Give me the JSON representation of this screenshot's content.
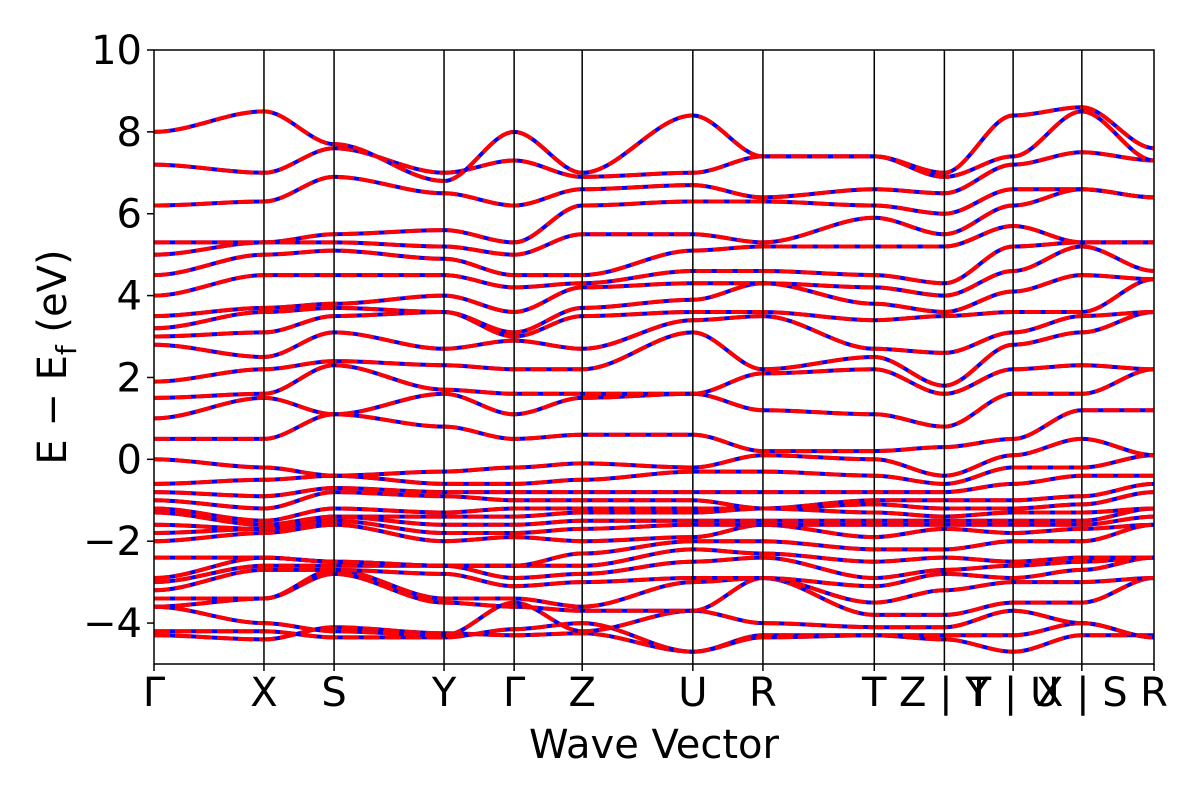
{
  "chart_data": {
    "type": "line",
    "title": "",
    "xlabel": "Wave Vector",
    "ylabel": "E − E_f (eV)",
    "ylabel_main": "E − E",
    "ylabel_sub": "f",
    "ylabel_unit": " (eV)",
    "ylim": [
      -5,
      10
    ],
    "yticks": [
      {
        "value": 10,
        "label": "10"
      },
      {
        "value": 8,
        "label": "8"
      },
      {
        "value": 6,
        "label": "6"
      },
      {
        "value": 4,
        "label": "4"
      },
      {
        "value": 2,
        "label": "2"
      },
      {
        "value": 0,
        "label": "0"
      },
      {
        "value": -2,
        "label": "−2"
      },
      {
        "value": -4,
        "label": "−4"
      }
    ],
    "grid": false,
    "legend": "none",
    "xlim": [
      0,
      14.55
    ],
    "kpoints": [
      {
        "label": "Γ",
        "x": 0
      },
      {
        "label": "X",
        "x": 1.6
      },
      {
        "label": "S",
        "x": 2.62
      },
      {
        "label": "Y",
        "x": 4.22
      },
      {
        "label": "Γ",
        "x": 5.24
      },
      {
        "label": "Z",
        "x": 6.23
      },
      {
        "label": "U",
        "x": 7.84
      },
      {
        "label": "R",
        "x": 8.86
      },
      {
        "label": "T",
        "x": 10.48
      },
      {
        "label": "Z | Y",
        "x": 11.5
      },
      {
        "label": "T | U",
        "x": 12.5
      },
      {
        "label": "X | S",
        "x": 13.5
      },
      {
        "label": "R",
        "x": 14.55
      }
    ],
    "series_styles": [
      {
        "color": "#0000ff",
        "style": "solid"
      },
      {
        "color": "#ff0000",
        "style": "dashed"
      }
    ],
    "bands": [
      [
        -4.3,
        -4.4,
        -4.1,
        -4.25,
        -4.3,
        -4.25,
        -4.7,
        -4.3,
        -4.3,
        -4.4,
        -4.7,
        -4.3,
        -4.3
      ],
      [
        -4.2,
        -4.2,
        -4.35,
        -4.35,
        -4.15,
        -4.0,
        -4.7,
        -4.35,
        -4.3,
        -4.3,
        -4.3,
        -4.0,
        -4.35
      ],
      [
        -3.6,
        -4.0,
        -4.2,
        -4.3,
        -3.5,
        -4.2,
        -3.7,
        -4.0,
        -4.1,
        -4.1,
        -3.7,
        -4.0,
        -4.35
      ],
      [
        -3.6,
        -3.4,
        -2.8,
        -3.5,
        -3.6,
        -3.7,
        -3.7,
        -2.9,
        -3.8,
        -3.8,
        -3.5,
        -3.5,
        -2.9
      ],
      [
        -3.4,
        -3.4,
        -2.7,
        -3.4,
        -3.4,
        -3.6,
        -3.0,
        -2.9,
        -3.5,
        -3.2,
        -3.0,
        -3.0,
        -2.9
      ],
      [
        -3.2,
        -2.7,
        -2.7,
        -2.8,
        -3.1,
        -3.0,
        -2.9,
        -2.9,
        -3.1,
        -2.8,
        -2.9,
        -2.7,
        -2.4
      ],
      [
        -3.0,
        -2.6,
        -2.6,
        -2.6,
        -2.9,
        -2.8,
        -2.5,
        -2.4,
        -2.9,
        -2.7,
        -2.6,
        -2.5,
        -2.4
      ],
      [
        -2.9,
        -2.4,
        -2.5,
        -2.6,
        -2.6,
        -2.6,
        -2.2,
        -2.3,
        -2.5,
        -2.4,
        -2.5,
        -2.4,
        -2.4
      ],
      [
        -2.4,
        -2.4,
        -2.5,
        -2.6,
        -2.6,
        -2.3,
        -2.0,
        -2.0,
        -2.2,
        -2.2,
        -2.0,
        -2.0,
        -1.6
      ],
      [
        -2.0,
        -1.8,
        -1.6,
        -2.0,
        -1.9,
        -2.0,
        -1.9,
        -1.6,
        -1.9,
        -1.7,
        -1.8,
        -1.7,
        -1.6
      ],
      [
        -1.8,
        -1.7,
        -1.5,
        -1.8,
        -1.8,
        -1.7,
        -1.6,
        -1.6,
        -1.6,
        -1.6,
        -1.6,
        -1.6,
        -1.4
      ],
      [
        -1.6,
        -1.7,
        -1.4,
        -1.6,
        -1.6,
        -1.5,
        -1.5,
        -1.5,
        -1.5,
        -1.5,
        -1.5,
        -1.5,
        -1.2
      ],
      [
        -1.3,
        -1.6,
        -1.4,
        -1.4,
        -1.4,
        -1.3,
        -1.3,
        -1.2,
        -1.3,
        -1.4,
        -1.3,
        -1.3,
        -1.2
      ],
      [
        -1.2,
        -1.5,
        -1.2,
        -1.3,
        -1.2,
        -1.2,
        -1.2,
        -1.2,
        -1.1,
        -1.2,
        -1.2,
        -1.1,
        -0.8
      ],
      [
        -1.0,
        -1.2,
        -0.8,
        -0.9,
        -1.0,
        -1.0,
        -1.0,
        -1.2,
        -1.0,
        -1.0,
        -1.0,
        -0.9,
        -0.6
      ],
      [
        -0.8,
        -0.9,
        -0.7,
        -0.8,
        -0.8,
        -0.8,
        -0.8,
        -0.8,
        -0.8,
        -0.8,
        -0.6,
        -0.4,
        -0.4
      ],
      [
        -0.6,
        -0.5,
        -0.4,
        -0.6,
        -0.6,
        -0.5,
        -0.3,
        -0.3,
        -0.4,
        -0.6,
        -0.2,
        -0.2,
        0.1
      ],
      [
        0.0,
        -0.2,
        -0.4,
        -0.3,
        -0.2,
        -0.1,
        -0.2,
        0.1,
        0.0,
        -0.4,
        0.1,
        0.5,
        0.1
      ],
      [
        0.5,
        0.5,
        1.1,
        0.8,
        0.5,
        0.6,
        0.6,
        0.2,
        0.2,
        0.3,
        0.5,
        1.2,
        1.2
      ],
      [
        1.0,
        1.5,
        1.1,
        1.6,
        1.1,
        1.5,
        1.6,
        1.2,
        1.1,
        0.8,
        1.6,
        1.6,
        2.2
      ],
      [
        1.5,
        1.6,
        2.3,
        1.7,
        1.6,
        1.6,
        1.6,
        2.1,
        2.2,
        1.6,
        2.2,
        2.3,
        2.2
      ],
      [
        1.9,
        2.2,
        2.4,
        2.3,
        2.2,
        2.2,
        3.1,
        2.2,
        2.5,
        1.8,
        2.8,
        3.1,
        3.6
      ],
      [
        2.8,
        2.5,
        3.1,
        2.7,
        2.9,
        2.7,
        3.4,
        3.5,
        2.7,
        2.6,
        3.1,
        3.5,
        3.6
      ],
      [
        3.0,
        3.1,
        3.5,
        3.6,
        3.0,
        3.5,
        3.6,
        3.6,
        3.4,
        3.5,
        3.6,
        3.6,
        4.4
      ],
      [
        3.2,
        3.6,
        3.7,
        3.6,
        3.1,
        3.7,
        3.9,
        4.3,
        3.8,
        3.6,
        4.1,
        4.5,
        4.4
      ],
      [
        3.5,
        3.7,
        3.8,
        4.0,
        3.6,
        4.2,
        4.3,
        4.3,
        4.2,
        4.0,
        4.6,
        5.2,
        4.6
      ],
      [
        4.0,
        4.5,
        4.5,
        4.5,
        4.2,
        4.3,
        4.6,
        4.6,
        4.5,
        4.3,
        5.2,
        5.3,
        5.3
      ],
      [
        4.5,
        5.0,
        5.1,
        4.9,
        4.5,
        4.5,
        5.1,
        5.2,
        5.2,
        5.2,
        5.7,
        5.3,
        5.3
      ],
      [
        5.0,
        5.3,
        5.3,
        5.2,
        5.0,
        5.5,
        5.5,
        5.3,
        5.9,
        5.5,
        6.2,
        6.6,
        6.4
      ],
      [
        5.3,
        5.3,
        5.5,
        5.6,
        5.3,
        6.2,
        6.3,
        6.3,
        6.2,
        6.0,
        6.6,
        6.6,
        6.4
      ],
      [
        6.2,
        6.3,
        6.9,
        6.5,
        6.2,
        6.6,
        6.7,
        6.4,
        6.6,
        6.5,
        7.2,
        7.5,
        7.3
      ],
      [
        7.2,
        7.0,
        7.6,
        7.0,
        7.3,
        6.9,
        7.0,
        7.4,
        7.4,
        6.9,
        7.4,
        8.5,
        7.3
      ],
      [
        8.0,
        8.5,
        7.7,
        6.8,
        8.0,
        7.0,
        8.4,
        7.4,
        7.4,
        7.0,
        8.4,
        8.6,
        7.6
      ]
    ]
  }
}
